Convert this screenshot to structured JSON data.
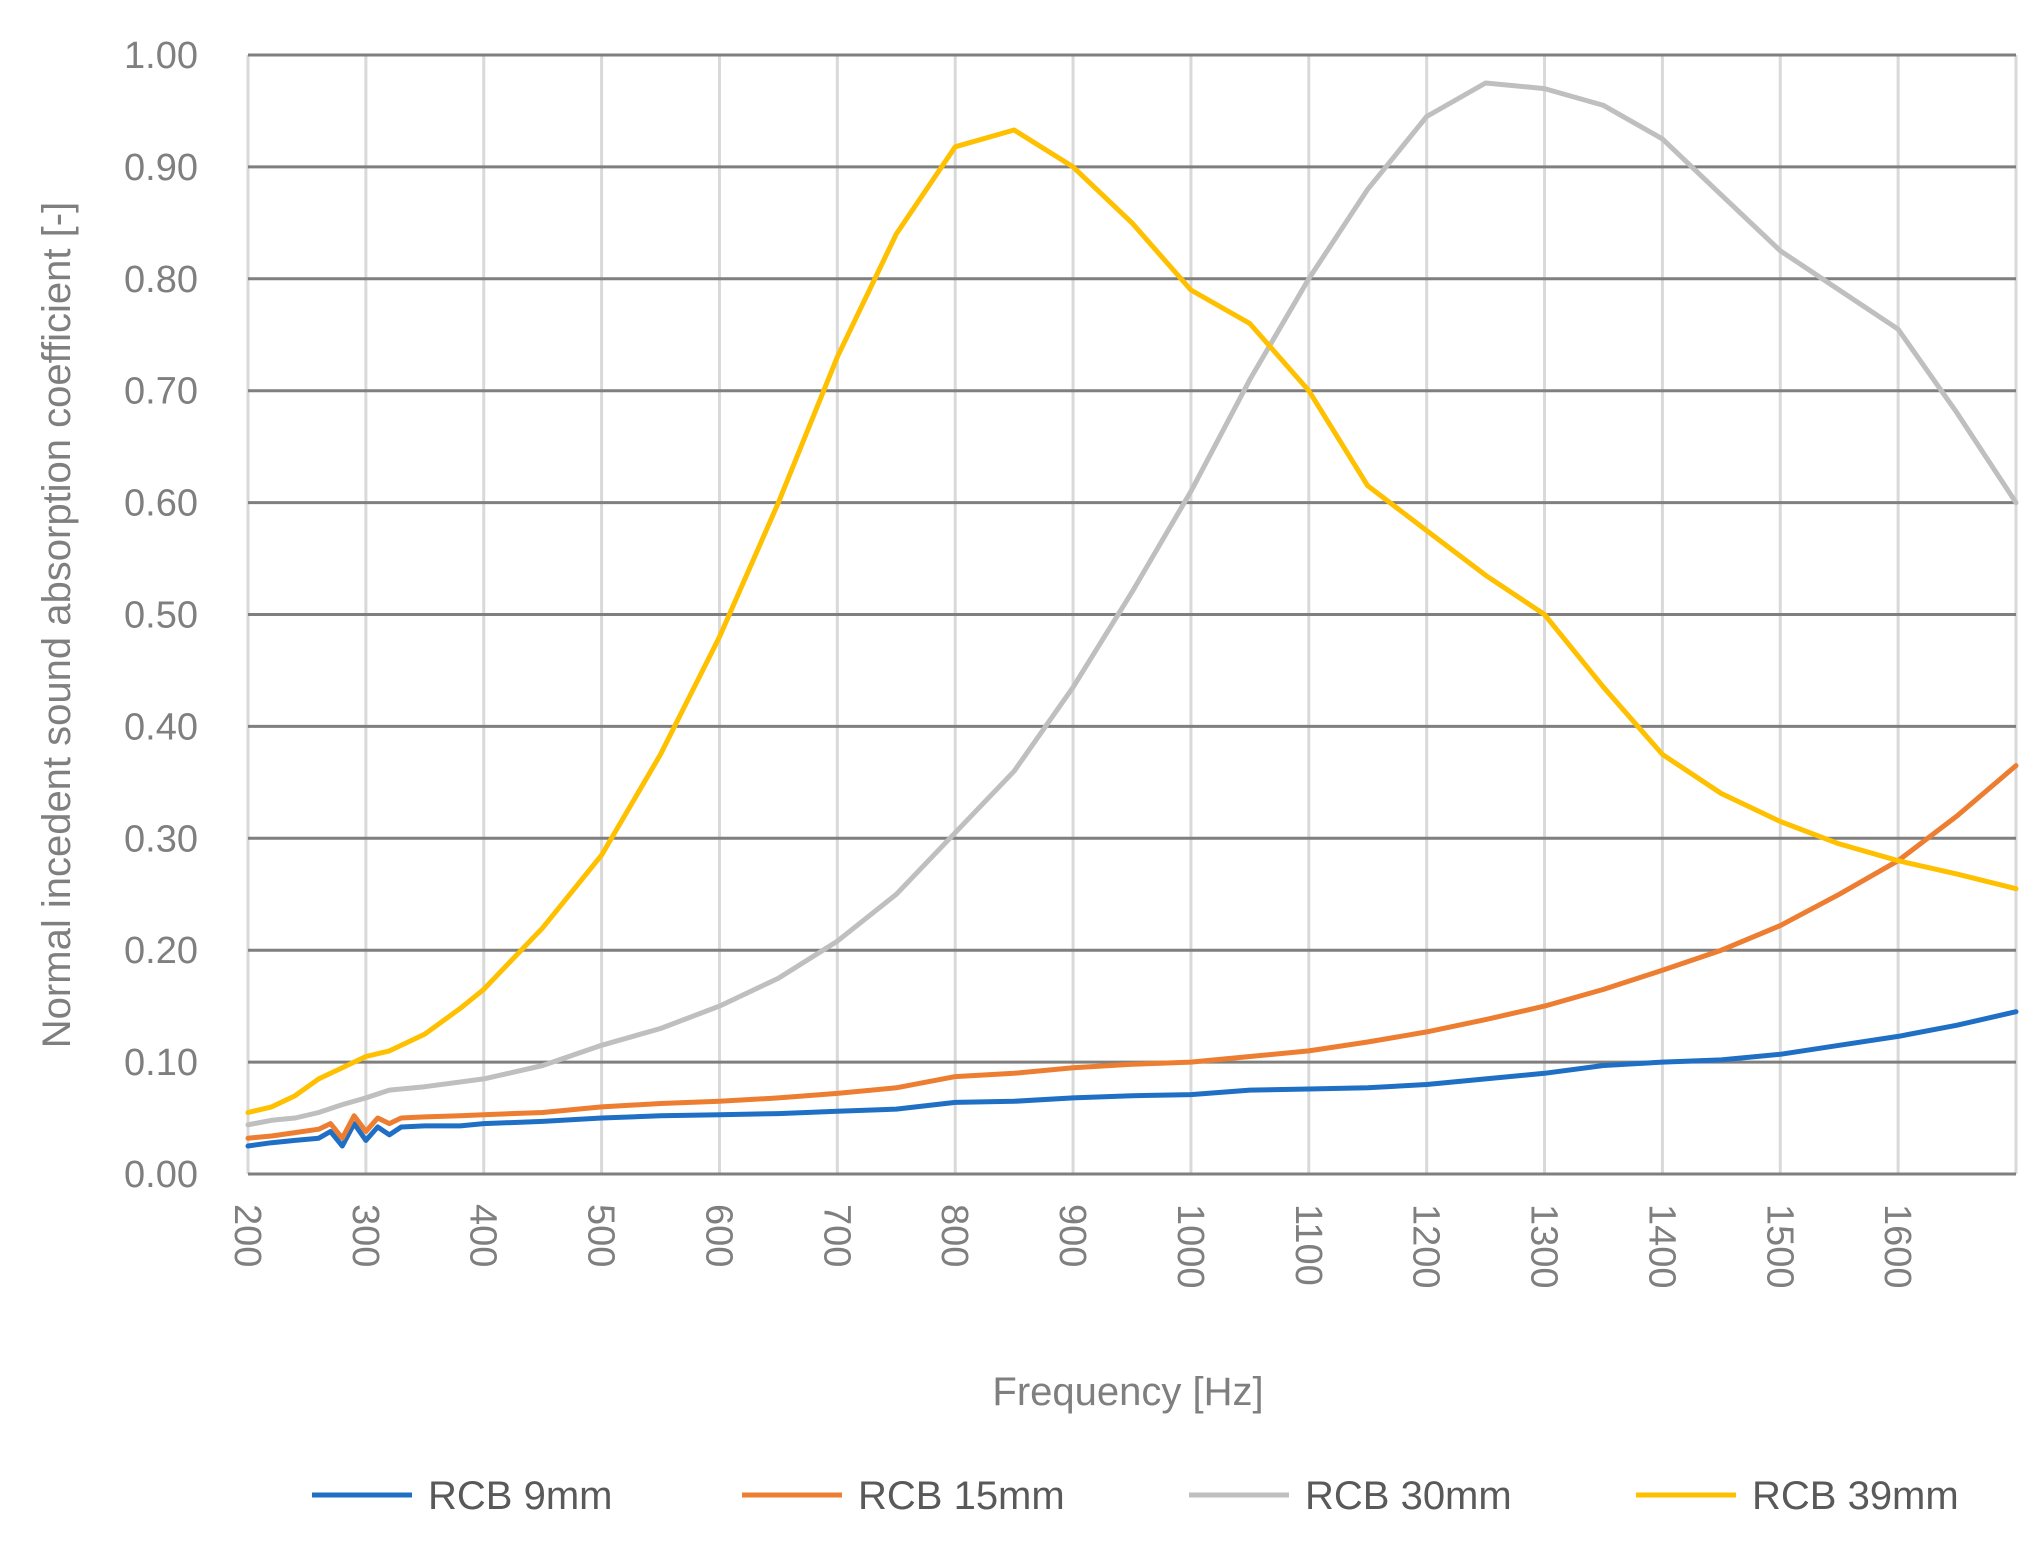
{
  "chart_data": {
    "type": "line",
    "title": "",
    "xlabel": "Frequency [Hz]",
    "ylabel": "Normal incedent sound absorption coefficient [-]",
    "xlim": [
      200,
      1700
    ],
    "ylim": [
      0,
      1
    ],
    "x_ticks": [
      "200",
      "300",
      "400",
      "500",
      "600",
      "700",
      "800",
      "900",
      "1000",
      "1100",
      "1200",
      "1300",
      "1400",
      "1500",
      "1600"
    ],
    "y_ticks": [
      "0.00",
      "0.10",
      "0.20",
      "0.30",
      "0.40",
      "0.50",
      "0.60",
      "0.70",
      "0.80",
      "0.90",
      "1.00"
    ],
    "grid": true,
    "legend_position": "bottom",
    "series": [
      {
        "name": "RCB 9mm",
        "color": "#1f6fc5",
        "points": [
          [
            200,
            0.025
          ],
          [
            220,
            0.028
          ],
          [
            240,
            0.03
          ],
          [
            260,
            0.032
          ],
          [
            270,
            0.038
          ],
          [
            280,
            0.025
          ],
          [
            290,
            0.045
          ],
          [
            300,
            0.03
          ],
          [
            310,
            0.042
          ],
          [
            320,
            0.035
          ],
          [
            330,
            0.042
          ],
          [
            350,
            0.043
          ],
          [
            380,
            0.043
          ],
          [
            400,
            0.045
          ],
          [
            450,
            0.047
          ],
          [
            500,
            0.05
          ],
          [
            550,
            0.052
          ],
          [
            600,
            0.053
          ],
          [
            650,
            0.054
          ],
          [
            700,
            0.056
          ],
          [
            750,
            0.058
          ],
          [
            800,
            0.064
          ],
          [
            850,
            0.065
          ],
          [
            900,
            0.068
          ],
          [
            950,
            0.07
          ],
          [
            1000,
            0.071
          ],
          [
            1050,
            0.075
          ],
          [
            1100,
            0.076
          ],
          [
            1150,
            0.077
          ],
          [
            1200,
            0.08
          ],
          [
            1250,
            0.085
          ],
          [
            1300,
            0.09
          ],
          [
            1350,
            0.097
          ],
          [
            1400,
            0.1
          ],
          [
            1450,
            0.102
          ],
          [
            1500,
            0.107
          ],
          [
            1550,
            0.115
          ],
          [
            1600,
            0.123
          ],
          [
            1650,
            0.133
          ],
          [
            1700,
            0.145
          ]
        ]
      },
      {
        "name": "RCB 15mm",
        "color": "#ed7d31",
        "points": [
          [
            200,
            0.032
          ],
          [
            220,
            0.034
          ],
          [
            240,
            0.037
          ],
          [
            260,
            0.04
          ],
          [
            270,
            0.045
          ],
          [
            280,
            0.032
          ],
          [
            290,
            0.052
          ],
          [
            300,
            0.038
          ],
          [
            310,
            0.05
          ],
          [
            320,
            0.045
          ],
          [
            330,
            0.05
          ],
          [
            350,
            0.051
          ],
          [
            380,
            0.052
          ],
          [
            400,
            0.053
          ],
          [
            450,
            0.055
          ],
          [
            500,
            0.06
          ],
          [
            550,
            0.063
          ],
          [
            600,
            0.065
          ],
          [
            650,
            0.068
          ],
          [
            700,
            0.072
          ],
          [
            750,
            0.077
          ],
          [
            800,
            0.087
          ],
          [
            850,
            0.09
          ],
          [
            900,
            0.095
          ],
          [
            950,
            0.098
          ],
          [
            1000,
            0.1
          ],
          [
            1050,
            0.105
          ],
          [
            1100,
            0.11
          ],
          [
            1150,
            0.118
          ],
          [
            1200,
            0.127
          ],
          [
            1250,
            0.138
          ],
          [
            1300,
            0.15
          ],
          [
            1350,
            0.165
          ],
          [
            1400,
            0.182
          ],
          [
            1450,
            0.2
          ],
          [
            1500,
            0.222
          ],
          [
            1550,
            0.25
          ],
          [
            1600,
            0.28
          ],
          [
            1650,
            0.32
          ],
          [
            1700,
            0.365
          ]
        ]
      },
      {
        "name": "RCB 30mm",
        "color": "#bfbfbf",
        "points": [
          [
            200,
            0.044
          ],
          [
            220,
            0.048
          ],
          [
            240,
            0.05
          ],
          [
            260,
            0.055
          ],
          [
            280,
            0.062
          ],
          [
            300,
            0.068
          ],
          [
            320,
            0.075
          ],
          [
            350,
            0.078
          ],
          [
            400,
            0.085
          ],
          [
            450,
            0.097
          ],
          [
            500,
            0.115
          ],
          [
            550,
            0.13
          ],
          [
            600,
            0.15
          ],
          [
            650,
            0.175
          ],
          [
            700,
            0.208
          ],
          [
            750,
            0.25
          ],
          [
            800,
            0.305
          ],
          [
            850,
            0.36
          ],
          [
            900,
            0.435
          ],
          [
            950,
            0.52
          ],
          [
            1000,
            0.61
          ],
          [
            1050,
            0.71
          ],
          [
            1100,
            0.8
          ],
          [
            1150,
            0.88
          ],
          [
            1200,
            0.945
          ],
          [
            1250,
            0.975
          ],
          [
            1300,
            0.97
          ],
          [
            1350,
            0.955
          ],
          [
            1400,
            0.925
          ],
          [
            1450,
            0.875
          ],
          [
            1500,
            0.825
          ],
          [
            1550,
            0.79
          ],
          [
            1600,
            0.755
          ],
          [
            1650,
            0.68
          ],
          [
            1700,
            0.6
          ]
        ]
      },
      {
        "name": "RCB 39mm",
        "color": "#ffc000",
        "points": [
          [
            200,
            0.055
          ],
          [
            220,
            0.06
          ],
          [
            240,
            0.07
          ],
          [
            260,
            0.085
          ],
          [
            280,
            0.095
          ],
          [
            300,
            0.105
          ],
          [
            320,
            0.11
          ],
          [
            350,
            0.125
          ],
          [
            380,
            0.148
          ],
          [
            400,
            0.165
          ],
          [
            450,
            0.22
          ],
          [
            500,
            0.285
          ],
          [
            550,
            0.375
          ],
          [
            600,
            0.48
          ],
          [
            650,
            0.6
          ],
          [
            700,
            0.73
          ],
          [
            750,
            0.84
          ],
          [
            800,
            0.918
          ],
          [
            850,
            0.933
          ],
          [
            900,
            0.9
          ],
          [
            950,
            0.85
          ],
          [
            1000,
            0.79
          ],
          [
            1050,
            0.76
          ],
          [
            1100,
            0.7
          ],
          [
            1150,
            0.615
          ],
          [
            1200,
            0.575
          ],
          [
            1250,
            0.535
          ],
          [
            1300,
            0.5
          ],
          [
            1350,
            0.435
          ],
          [
            1400,
            0.375
          ],
          [
            1450,
            0.34
          ],
          [
            1500,
            0.315
          ],
          [
            1550,
            0.295
          ],
          [
            1600,
            0.28
          ],
          [
            1650,
            0.268
          ],
          [
            1700,
            0.255
          ]
        ]
      }
    ]
  }
}
